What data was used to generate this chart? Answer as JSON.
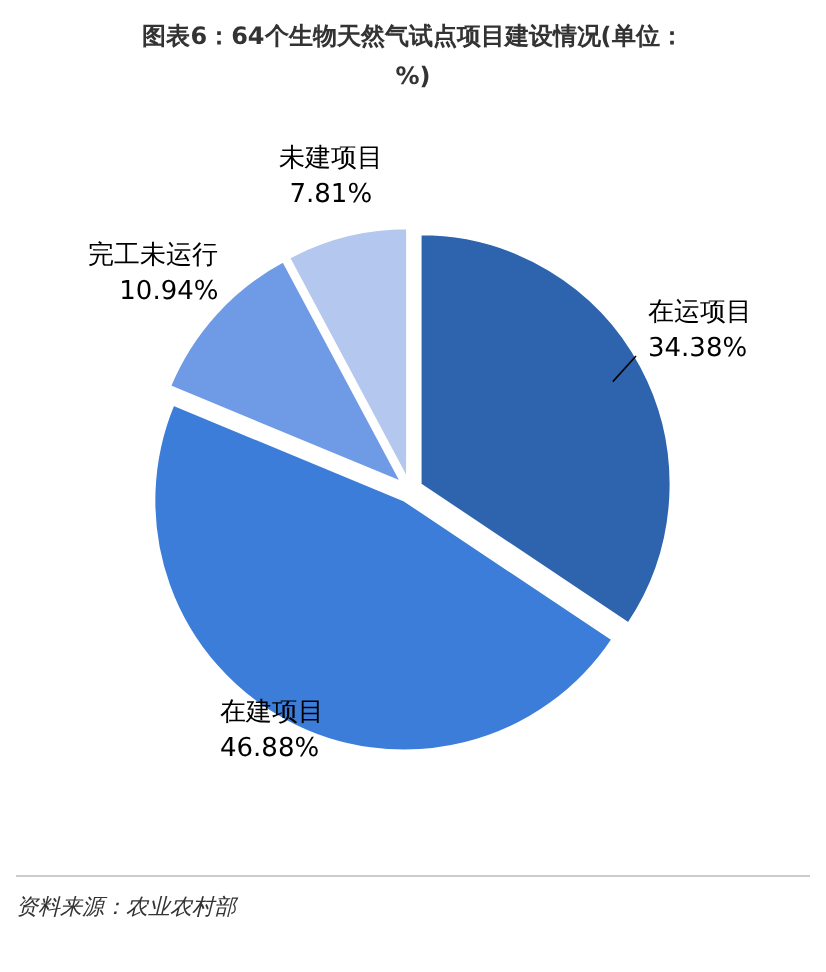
{
  "chart_data": {
    "type": "pie",
    "title": "图表6：64个生物天然气试点项目建设情况(单位：%)",
    "categories": [
      "在运项目",
      "在建项目",
      "完工未运行",
      "未建项目"
    ],
    "values": [
      34.38,
      46.88,
      10.94,
      7.81
    ],
    "colors": [
      "#2e64ae",
      "#3b7dd8",
      "#6f9ae6",
      "#b4c7ef"
    ],
    "value_labels": [
      "34.38%",
      "46.88%",
      "10.94%",
      "7.81%"
    ],
    "annotations": [
      "资料来源：农业农村部"
    ]
  }
}
